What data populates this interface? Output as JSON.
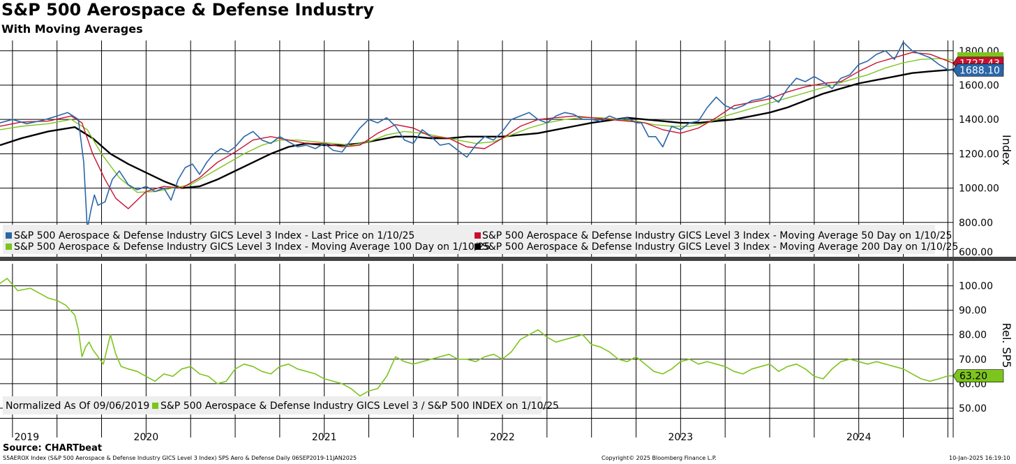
{
  "title": "S&P 500 Aerospace & Defense Industry",
  "subtitle": "With Moving Averages",
  "source": "Source: CHARTbeat",
  "footer": {
    "left": "S5AEROX Index (S&P 500 Aerospace & Defense Industry GICS Level 3 Index) SPS Aero & Defense  Daily 06SEP2019-11JAN2025",
    "center": "Copyright© 2025 Bloomberg Finance L.P.",
    "right": "10-Jan-2025 16:19:10"
  },
  "colors": {
    "price": "#2a66a8",
    "ma50": "#c8102e",
    "ma100": "#7dc41e",
    "ma200": "#000000",
    "relative": "#7dc41e",
    "legend_bg": "#eeeeee",
    "grid": "#000000"
  },
  "chart_data": [
    {
      "type": "line",
      "panel": "top",
      "ylabel": "Index",
      "ylim": [
        600,
        1860
      ],
      "yticks": [
        "800.00",
        "1000.00",
        "1200.00",
        "1400.00",
        "1600.00",
        "1800.00"
      ],
      "ytick_values": [
        800,
        1000,
        1200,
        1400,
        1600,
        1800
      ],
      "bottom_tick": "600.00",
      "x_labels": [
        "2019",
        "2020",
        "2021",
        "2022",
        "2023",
        "2024"
      ],
      "x_range": [
        2019.68,
        2025.03
      ],
      "grid": true,
      "legend_position": "bottom-left",
      "last_labels": {
        "ma50": "1727.43",
        "price": "1688.10"
      },
      "series": [
        {
          "key": "price",
          "name": "S&P 500 Aerospace & Defense Industry GICS Level 3 Index - Last Price on 1/10/25",
          "x": [
            2019.68,
            2019.75,
            2019.83,
            2019.92,
            2020.0,
            2020.06,
            2020.12,
            2020.15,
            2020.17,
            2020.19,
            2020.21,
            2020.23,
            2020.27,
            2020.31,
            2020.35,
            2020.4,
            2020.45,
            2020.5,
            2020.55,
            2020.6,
            2020.64,
            2020.68,
            2020.72,
            2020.76,
            2020.8,
            2020.84,
            2020.88,
            2020.92,
            2020.96,
            2021.0,
            2021.05,
            2021.1,
            2021.15,
            2021.2,
            2021.25,
            2021.3,
            2021.35,
            2021.4,
            2021.45,
            2021.5,
            2021.55,
            2021.6,
            2021.65,
            2021.7,
            2021.75,
            2021.8,
            2021.85,
            2021.9,
            2021.95,
            2022.0,
            2022.05,
            2022.1,
            2022.15,
            2022.2,
            2022.25,
            2022.3,
            2022.35,
            2022.4,
            2022.45,
            2022.5,
            2022.55,
            2022.6,
            2022.65,
            2022.7,
            2022.75,
            2022.8,
            2022.85,
            2022.9,
            2022.95,
            2023.0,
            2023.05,
            2023.1,
            2023.15,
            2023.2,
            2023.25,
            2023.28,
            2023.32,
            2023.36,
            2023.4,
            2023.45,
            2023.5,
            2023.55,
            2023.6,
            2023.65,
            2023.7,
            2023.75,
            2023.8,
            2023.85,
            2023.9,
            2023.95,
            2024.0,
            2024.05,
            2024.1,
            2024.15,
            2024.2,
            2024.25,
            2024.3,
            2024.35,
            2024.4,
            2024.45,
            2024.5,
            2024.55,
            2024.6,
            2024.65,
            2024.7,
            2024.75,
            2024.8,
            2024.85,
            2024.9,
            2024.95,
            2025.0,
            2025.03
          ],
          "y": [
            1380,
            1400,
            1375,
            1395,
            1420,
            1440,
            1400,
            1150,
            760,
            870,
            960,
            900,
            920,
            1050,
            1100,
            1020,
            990,
            1010,
            980,
            1000,
            930,
            1050,
            1120,
            1140,
            1080,
            1150,
            1200,
            1230,
            1210,
            1240,
            1300,
            1330,
            1280,
            1260,
            1300,
            1270,
            1240,
            1250,
            1230,
            1260,
            1220,
            1210,
            1280,
            1350,
            1400,
            1380,
            1410,
            1360,
            1280,
            1260,
            1340,
            1300,
            1250,
            1260,
            1220,
            1180,
            1250,
            1300,
            1280,
            1330,
            1400,
            1420,
            1440,
            1400,
            1380,
            1420,
            1440,
            1430,
            1400,
            1400,
            1390,
            1420,
            1400,
            1410,
            1380,
            1380,
            1300,
            1300,
            1240,
            1360,
            1340,
            1380,
            1390,
            1470,
            1530,
            1480,
            1460,
            1480,
            1510,
            1520,
            1540,
            1500,
            1580,
            1640,
            1620,
            1650,
            1620,
            1580,
            1640,
            1660,
            1720,
            1740,
            1780,
            1800,
            1750,
            1850,
            1800,
            1780,
            1760,
            1720,
            1690,
            1688
          ]
        },
        {
          "key": "ma50",
          "name": "S&P 500 Aerospace & Defense Industry GICS Level 3 Index - Moving Average 50 Day on 1/10/25",
          "x": [
            2019.68,
            2019.8,
            2019.95,
            2020.08,
            2020.14,
            2020.2,
            2020.27,
            2020.33,
            2020.4,
            2020.5,
            2020.6,
            2020.7,
            2020.8,
            2020.9,
            2021.0,
            2021.1,
            2021.2,
            2021.3,
            2021.4,
            2021.5,
            2021.6,
            2021.7,
            2021.8,
            2021.9,
            2022.0,
            2022.1,
            2022.2,
            2022.3,
            2022.4,
            2022.5,
            2022.6,
            2022.7,
            2022.8,
            2022.9,
            2023.0,
            2023.1,
            2023.2,
            2023.3,
            2023.4,
            2023.5,
            2023.6,
            2023.7,
            2023.8,
            2023.9,
            2024.0,
            2024.1,
            2024.2,
            2024.3,
            2024.4,
            2024.5,
            2024.6,
            2024.7,
            2024.8,
            2024.9,
            2025.0,
            2025.03
          ],
          "y": [
            1360,
            1385,
            1390,
            1420,
            1380,
            1200,
            1050,
            940,
            880,
            980,
            1010,
            1000,
            1060,
            1150,
            1210,
            1280,
            1300,
            1280,
            1260,
            1260,
            1240,
            1250,
            1320,
            1370,
            1350,
            1300,
            1290,
            1240,
            1230,
            1290,
            1360,
            1400,
            1410,
            1420,
            1410,
            1400,
            1390,
            1380,
            1340,
            1320,
            1350,
            1410,
            1480,
            1500,
            1520,
            1560,
            1590,
            1610,
            1620,
            1680,
            1730,
            1760,
            1790,
            1780,
            1740,
            1727.43
          ]
        },
        {
          "key": "ma100",
          "name": "S&P 500 Aerospace & Defense Industry GICS Level 3 Index - Moving Average 100 Day on 1/10/25",
          "x": [
            2019.68,
            2019.8,
            2019.95,
            2020.08,
            2020.17,
            2020.25,
            2020.35,
            2020.45,
            2020.55,
            2020.65,
            2020.75,
            2020.85,
            2020.95,
            2021.05,
            2021.15,
            2021.25,
            2021.35,
            2021.45,
            2021.55,
            2021.65,
            2021.75,
            2021.85,
            2021.95,
            2022.05,
            2022.15,
            2022.25,
            2022.35,
            2022.45,
            2022.55,
            2022.65,
            2022.75,
            2022.85,
            2022.95,
            2023.05,
            2023.15,
            2023.25,
            2023.35,
            2023.45,
            2023.55,
            2023.65,
            2023.75,
            2023.85,
            2023.95,
            2024.05,
            2024.15,
            2024.25,
            2024.35,
            2024.45,
            2024.55,
            2024.65,
            2024.75,
            2024.85,
            2024.95,
            2025.03
          ],
          "y": [
            1340,
            1360,
            1375,
            1400,
            1340,
            1200,
            1060,
            975,
            980,
            1000,
            1020,
            1080,
            1140,
            1200,
            1250,
            1280,
            1280,
            1270,
            1260,
            1250,
            1270,
            1310,
            1330,
            1320,
            1300,
            1280,
            1260,
            1270,
            1310,
            1350,
            1380,
            1400,
            1410,
            1410,
            1400,
            1390,
            1370,
            1360,
            1360,
            1380,
            1420,
            1450,
            1480,
            1510,
            1540,
            1570,
            1600,
            1630,
            1660,
            1700,
            1730,
            1750,
            1755,
            1745
          ]
        },
        {
          "key": "ma200",
          "name": "S&P 500 Aerospace & Defense Industry GICS Level 3 Index - Moving Average 200 Day on 1/10/25",
          "x": [
            2019.68,
            2019.8,
            2019.95,
            2020.1,
            2020.2,
            2020.3,
            2020.4,
            2020.5,
            2020.6,
            2020.7,
            2020.8,
            2020.9,
            2021.0,
            2021.1,
            2021.2,
            2021.3,
            2021.4,
            2021.5,
            2021.6,
            2021.7,
            2021.8,
            2021.9,
            2022.0,
            2022.1,
            2022.2,
            2022.3,
            2022.4,
            2022.5,
            2022.6,
            2022.7,
            2022.8,
            2022.9,
            2023.0,
            2023.1,
            2023.2,
            2023.3,
            2023.4,
            2023.5,
            2023.6,
            2023.7,
            2023.8,
            2023.9,
            2024.0,
            2024.1,
            2024.2,
            2024.3,
            2024.4,
            2024.5,
            2024.6,
            2024.7,
            2024.8,
            2024.9,
            2025.0,
            2025.03
          ],
          "y": [
            1250,
            1290,
            1330,
            1355,
            1290,
            1200,
            1140,
            1090,
            1040,
            1000,
            1010,
            1050,
            1100,
            1150,
            1200,
            1240,
            1260,
            1250,
            1250,
            1260,
            1280,
            1300,
            1300,
            1290,
            1290,
            1300,
            1300,
            1300,
            1310,
            1320,
            1340,
            1360,
            1380,
            1395,
            1410,
            1400,
            1390,
            1380,
            1380,
            1390,
            1400,
            1420,
            1440,
            1470,
            1510,
            1550,
            1580,
            1610,
            1630,
            1650,
            1670,
            1680,
            1688,
            1690
          ]
        }
      ]
    },
    {
      "type": "line",
      "panel": "bottom",
      "ylabel": "Rel. SP5",
      "ylim": [
        46,
        109
      ],
      "yticks": [
        "50.00",
        "60.00",
        "70.00",
        "80.00",
        "90.00",
        "100.00"
      ],
      "ytick_values": [
        50,
        60,
        70,
        80,
        90,
        100
      ],
      "x_range": [
        2019.68,
        2025.03
      ],
      "grid": true,
      "legend_position": "bottom-left",
      "last_label": "63.20",
      "legend_prefix": "Normalized As Of 09/06/2019",
      "series": [
        {
          "key": "relative",
          "name": "S&P 500 Aerospace & Defense Industry GICS Level 3 / S&P 500 INDEX on 1/10/25",
          "x": [
            2019.68,
            2019.72,
            2019.78,
            2019.85,
            2019.9,
            2019.95,
            2020.0,
            2020.05,
            2020.1,
            2020.12,
            2020.14,
            2020.16,
            2020.18,
            2020.2,
            2020.22,
            2020.26,
            2020.3,
            2020.33,
            2020.36,
            2020.4,
            2020.45,
            2020.5,
            2020.55,
            2020.6,
            2020.65,
            2020.7,
            2020.75,
            2020.8,
            2020.85,
            2020.9,
            2020.95,
            2021.0,
            2021.05,
            2021.1,
            2021.15,
            2021.2,
            2021.25,
            2021.3,
            2021.35,
            2021.4,
            2021.45,
            2021.5,
            2021.55,
            2021.6,
            2021.65,
            2021.7,
            2021.75,
            2021.8,
            2021.85,
            2021.9,
            2021.95,
            2022.0,
            2022.05,
            2022.1,
            2022.15,
            2022.2,
            2022.25,
            2022.3,
            2022.35,
            2022.4,
            2022.45,
            2022.5,
            2022.55,
            2022.6,
            2022.65,
            2022.7,
            2022.75,
            2022.8,
            2022.85,
            2022.9,
            2022.95,
            2023.0,
            2023.05,
            2023.1,
            2023.15,
            2023.2,
            2023.25,
            2023.3,
            2023.35,
            2023.4,
            2023.45,
            2023.5,
            2023.55,
            2023.6,
            2023.65,
            2023.7,
            2023.75,
            2023.8,
            2023.85,
            2023.9,
            2023.95,
            2024.0,
            2024.05,
            2024.1,
            2024.15,
            2024.2,
            2024.25,
            2024.3,
            2024.35,
            2024.4,
            2024.45,
            2024.5,
            2024.55,
            2024.6,
            2024.65,
            2024.7,
            2024.75,
            2024.8,
            2024.85,
            2024.9,
            2024.95,
            2025.0,
            2025.03
          ],
          "y": [
            101,
            103,
            98,
            99,
            97,
            95,
            94,
            92,
            88,
            82,
            71,
            75,
            77,
            74,
            72,
            68,
            80,
            72,
            67,
            66,
            65,
            63,
            61,
            64,
            63,
            66,
            67,
            64,
            63,
            60,
            61,
            66,
            68,
            67,
            65,
            64,
            67,
            68,
            66,
            65,
            64,
            62,
            61,
            60,
            58,
            55,
            57,
            58,
            63,
            71,
            69,
            68,
            69,
            70,
            71,
            72,
            70,
            70,
            69,
            71,
            72,
            70,
            73,
            78,
            80,
            82,
            79,
            77,
            78,
            79,
            80,
            76,
            75,
            73,
            70,
            69,
            71,
            68,
            65,
            64,
            66,
            69,
            70,
            68,
            69,
            68,
            67,
            65,
            64,
            66,
            67,
            68,
            65,
            67,
            68,
            66,
            63,
            62,
            66,
            69,
            70,
            69,
            68,
            69,
            68,
            67,
            66,
            64,
            62,
            61,
            62,
            63.2,
            63.2
          ]
        }
      ]
    }
  ]
}
